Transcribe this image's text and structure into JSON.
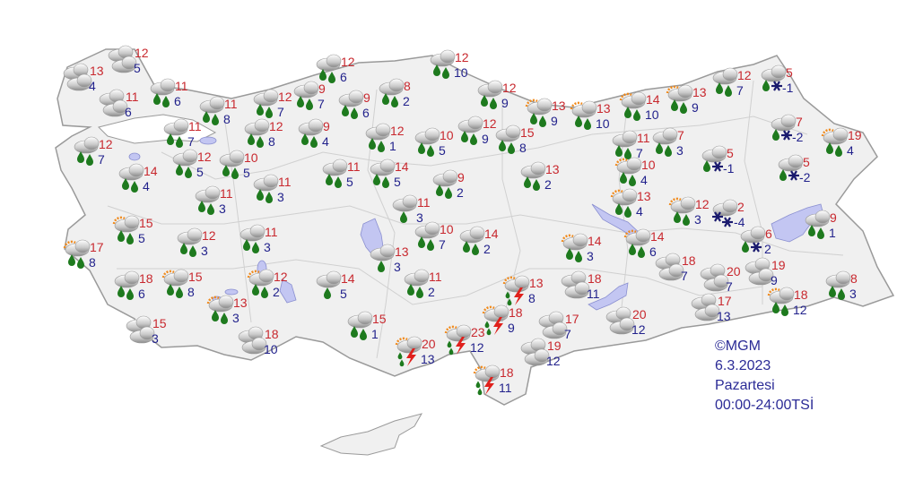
{
  "caption": {
    "copyright": "©MGM",
    "date": "6.3.2023",
    "day": "Pazartesi",
    "period": "00:00-24:00TSİ"
  },
  "colors": {
    "max_temp": "#c8282e",
    "min_temp": "#22228c",
    "land": "#f0f0f0",
    "water": "#c3c6f2",
    "drop": "#1e7a1e",
    "lightning": "#e0201c"
  },
  "legend_icon_types": [
    "cloudy",
    "rain",
    "partly-sunny-rain",
    "light-rain",
    "rain-snow",
    "snow",
    "thunderstorm"
  ],
  "stations": [
    {
      "icon": "cloudy",
      "max": "13",
      "min": "4"
    },
    {
      "icon": "cloudy",
      "max": "12",
      "min": "5"
    },
    {
      "icon": "cloudy",
      "max": "11",
      "min": "6"
    },
    {
      "icon": "rain",
      "max": "11",
      "min": "6"
    },
    {
      "icon": "rain",
      "max": "11",
      "min": "8"
    },
    {
      "icon": "rain",
      "max": "12",
      "min": "7"
    },
    {
      "icon": "rain",
      "max": "9",
      "min": "7"
    },
    {
      "icon": "rain",
      "max": "12",
      "min": "6"
    },
    {
      "icon": "rain",
      "max": "9",
      "min": "6"
    },
    {
      "icon": "rain",
      "max": "8",
      "min": "2"
    },
    {
      "icon": "rain",
      "max": "12",
      "min": "10"
    },
    {
      "icon": "rain",
      "max": "12",
      "min": "9"
    },
    {
      "icon": "partly-sunny-rain",
      "max": "13",
      "min": "9"
    },
    {
      "icon": "partly-sunny-rain",
      "max": "13",
      "min": "10"
    },
    {
      "icon": "partly-sunny-rain",
      "max": "14",
      "min": "10"
    },
    {
      "icon": "partly-sunny-rain",
      "max": "13",
      "min": "9"
    },
    {
      "icon": "rain",
      "max": "12",
      "min": "7"
    },
    {
      "icon": "rain-snow",
      "max": "5",
      "min": "-1"
    },
    {
      "icon": "rain-snow",
      "max": "7",
      "min": "-2"
    },
    {
      "icon": "partly-sunny-rain",
      "max": "19",
      "min": "4"
    },
    {
      "icon": "rain-snow",
      "max": "5",
      "min": "-1"
    },
    {
      "icon": "rain-snow",
      "max": "5",
      "min": "-2"
    },
    {
      "icon": "rain",
      "max": "7",
      "min": "3"
    },
    {
      "icon": "rain",
      "max": "11",
      "min": "7"
    },
    {
      "icon": "partly-sunny-rain",
      "max": "10",
      "min": "4"
    },
    {
      "icon": "partly-sunny-rain",
      "max": "13",
      "min": "4"
    },
    {
      "icon": "partly-sunny-rain",
      "max": "12",
      "min": "3"
    },
    {
      "icon": "snow",
      "max": "2",
      "min": "-4"
    },
    {
      "icon": "rain-snow",
      "max": "6",
      "min": "2"
    },
    {
      "icon": "rain",
      "max": "9",
      "min": "1"
    },
    {
      "icon": "rain",
      "max": "8",
      "min": "3"
    },
    {
      "icon": "cloudy",
      "max": "19",
      "min": "9"
    },
    {
      "icon": "cloudy",
      "max": "20",
      "min": "7"
    },
    {
      "icon": "cloudy",
      "max": "18",
      "min": "7"
    },
    {
      "icon": "partly-sunny-rain",
      "max": "18",
      "min": "12"
    },
    {
      "icon": "cloudy",
      "max": "17",
      "min": "13"
    },
    {
      "icon": "cloudy",
      "max": "20",
      "min": "12"
    },
    {
      "icon": "partly-sunny-rain",
      "max": "14",
      "min": "6"
    },
    {
      "icon": "partly-sunny-rain",
      "max": "14",
      "min": "3"
    },
    {
      "icon": "cloudy",
      "max": "18",
      "min": "11"
    },
    {
      "icon": "cloudy",
      "max": "17",
      "min": "7"
    },
    {
      "icon": "cloudy",
      "max": "19",
      "min": "12"
    },
    {
      "icon": "thunderstorm",
      "max": "18",
      "min": "11"
    },
    {
      "icon": "thunderstorm",
      "max": "13",
      "min": "8"
    },
    {
      "icon": "thunderstorm",
      "max": "18",
      "min": "9"
    },
    {
      "icon": "thunderstorm",
      "max": "23",
      "min": "12"
    },
    {
      "icon": "thunderstorm",
      "max": "20",
      "min": "13"
    },
    {
      "icon": "rain",
      "max": "15",
      "min": "1"
    },
    {
      "icon": "light-rain",
      "max": "14",
      "min": "5"
    },
    {
      "icon": "rain",
      "max": "11",
      "min": "2"
    },
    {
      "icon": "light-rain",
      "max": "13",
      "min": "3"
    },
    {
      "icon": "rain",
      "max": "10",
      "min": "7"
    },
    {
      "icon": "light-rain",
      "max": "11",
      "min": "3"
    },
    {
      "icon": "rain",
      "max": "14",
      "min": "2"
    },
    {
      "icon": "rain",
      "max": "13",
      "min": "2"
    },
    {
      "icon": "rain",
      "max": "9",
      "min": "2"
    },
    {
      "icon": "rain",
      "max": "10",
      "min": "5"
    },
    {
      "icon": "rain",
      "max": "15",
      "min": "8"
    },
    {
      "icon": "rain",
      "max": "12",
      "min": "9"
    },
    {
      "icon": "rain",
      "max": "12",
      "min": "1"
    },
    {
      "icon": "rain",
      "max": "11",
      "min": "5"
    },
    {
      "icon": "rain",
      "max": "14",
      "min": "5"
    },
    {
      "icon": "rain",
      "max": "9",
      "min": "4"
    },
    {
      "icon": "rain",
      "max": "12",
      "min": "8"
    },
    {
      "icon": "rain",
      "max": "11",
      "min": "7"
    },
    {
      "icon": "rain",
      "max": "12",
      "min": "7"
    },
    {
      "icon": "rain",
      "max": "14",
      "min": "4"
    },
    {
      "icon": "rain",
      "max": "12",
      "min": "5"
    },
    {
      "icon": "rain",
      "max": "10",
      "min": "5"
    },
    {
      "icon": "rain",
      "max": "11",
      "min": "3"
    },
    {
      "icon": "rain",
      "max": "11",
      "min": "3"
    },
    {
      "icon": "partly-sunny-rain",
      "max": "15",
      "min": "5"
    },
    {
      "icon": "rain",
      "max": "12",
      "min": "3"
    },
    {
      "icon": "rain",
      "max": "11",
      "min": "3"
    },
    {
      "icon": "partly-sunny-rain",
      "max": "17",
      "min": "8"
    },
    {
      "icon": "rain",
      "max": "18",
      "min": "6"
    },
    {
      "icon": "partly-sunny-rain",
      "max": "15",
      "min": "8"
    },
    {
      "icon": "partly-sunny-rain",
      "max": "12",
      "min": "2"
    },
    {
      "icon": "partly-sunny-rain",
      "max": "13",
      "min": "3"
    },
    {
      "icon": "cloudy",
      "max": "15",
      "min": "3"
    },
    {
      "icon": "cloudy",
      "max": "18",
      "min": "10"
    }
  ]
}
